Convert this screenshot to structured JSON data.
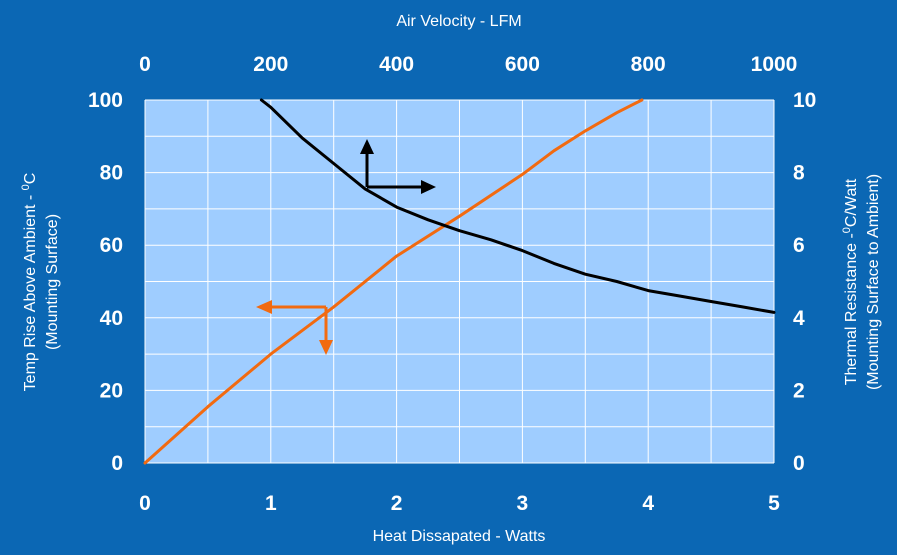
{
  "chart_data": {
    "type": "line",
    "top_axis": {
      "label": "Air Velocity - LFM",
      "range": [
        0,
        1000
      ],
      "ticks": [
        0,
        200,
        400,
        600,
        800,
        1000
      ]
    },
    "bottom_axis": {
      "label": "Heat Dissapated - Watts",
      "range": [
        0,
        5
      ],
      "ticks": [
        0,
        1,
        2,
        3,
        4,
        5
      ]
    },
    "left_axis": {
      "label_line1": "Temp Rise Above Ambient - ",
      "label_sup": "0",
      "label_unit": "C",
      "label_line2": "(Mounting Surface)",
      "range": [
        0,
        100
      ],
      "ticks": [
        0,
        20,
        40,
        60,
        80,
        100
      ]
    },
    "right_axis": {
      "label_line1": "Thermal Resistance -",
      "label_sup": "0",
      "label_unit": "C/Watt",
      "label_line2": "(Mounting Surface to Ambient)",
      "range": [
        0,
        10
      ],
      "ticks": [
        0,
        2,
        4,
        6,
        8,
        10
      ]
    },
    "series": [
      {
        "color": "#f26a10",
        "x_axis": "bottom",
        "y_axis": "left",
        "x": [
          0,
          0.5,
          1.0,
          1.5,
          2.0,
          2.5,
          3.0,
          3.25,
          3.5,
          3.75,
          3.95
        ],
        "y": [
          0,
          15.5,
          30,
          43,
          57,
          68,
          79.5,
          86,
          91.5,
          96.5,
          100
        ]
      },
      {
        "color": "#000000",
        "x_axis": "top",
        "y_axis": "right",
        "x": [
          185,
          200,
          250,
          300,
          350,
          400,
          450,
          500,
          550,
          600,
          650,
          700,
          750,
          800,
          850,
          900,
          950,
          1000
        ],
        "y": [
          10.0,
          9.8,
          8.95,
          8.25,
          7.55,
          7.05,
          6.7,
          6.4,
          6.15,
          5.85,
          5.5,
          5.2,
          5.0,
          4.75,
          4.6,
          4.45,
          4.3,
          4.15
        ]
      }
    ],
    "grid": true,
    "plot_background": "#9fcdff",
    "background": "#0b67b4",
    "grid_color": "#ffffff"
  }
}
